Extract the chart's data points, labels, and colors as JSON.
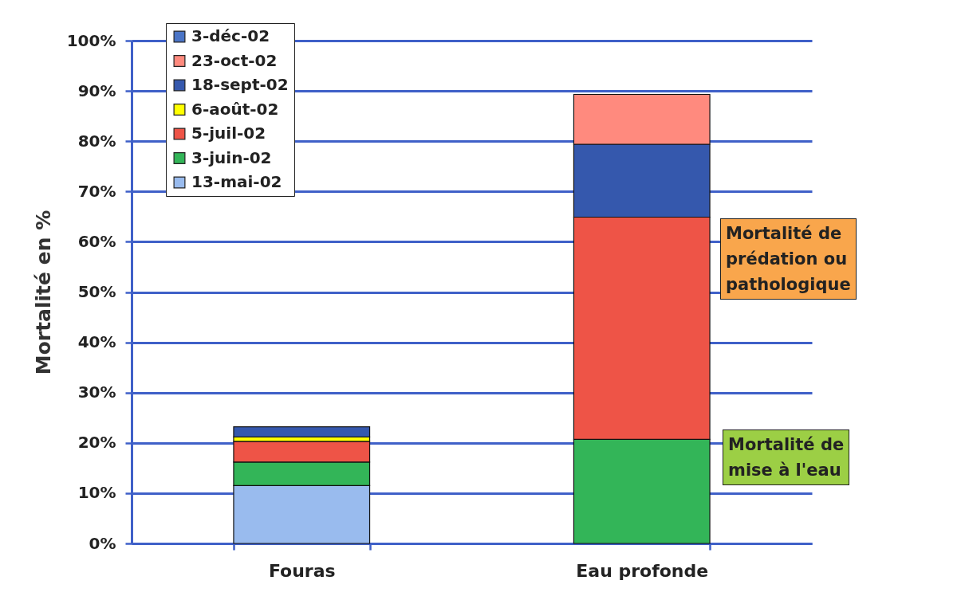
{
  "chart_data": {
    "type": "bar",
    "stacked": true,
    "ylabel": "Mortalité en %",
    "categories": [
      "Fouras",
      "Eau profonde"
    ],
    "series": [
      {
        "name": "13-mai-02",
        "color": "#99bbee",
        "values": [
          11.5,
          null
        ]
      },
      {
        "name": "3-juin-02",
        "color": "#33b558",
        "values": [
          4.7,
          20.7
        ]
      },
      {
        "name": "5-juil-02",
        "color": "#ee5447",
        "values": [
          4.1,
          44.2
        ]
      },
      {
        "name": "6-août-02",
        "color": "#ffff00",
        "values": [
          0.9,
          null
        ]
      },
      {
        "name": "18-sept-02",
        "color": "#3558ad",
        "values": [
          2.0,
          14.5
        ]
      },
      {
        "name": "23-oct-02",
        "color": "#ff8a7e",
        "values": [
          null,
          9.9
        ]
      },
      {
        "name": "3-déc-02",
        "color": "#4a74c6",
        "values": [
          null,
          null
        ]
      }
    ],
    "ylim": [
      0,
      100
    ],
    "yticks": [
      {
        "value": 0,
        "label": "0%"
      },
      {
        "value": 10,
        "label": "10%"
      },
      {
        "value": 20,
        "label": "20%"
      },
      {
        "value": 30,
        "label": "30%"
      },
      {
        "value": 40,
        "label": "40%"
      },
      {
        "value": 50,
        "label": "50%"
      },
      {
        "value": 60,
        "label": "60%"
      },
      {
        "value": 70,
        "label": "70%"
      },
      {
        "value": 80,
        "label": "80%"
      },
      {
        "value": 90,
        "label": "90%"
      },
      {
        "value": 100,
        "label": "100%"
      }
    ],
    "grid": "y",
    "legend": "top left",
    "annotations": [
      "Mortalité de prédation ou pathologique",
      "Mortalité de mise à l'eau"
    ]
  }
}
